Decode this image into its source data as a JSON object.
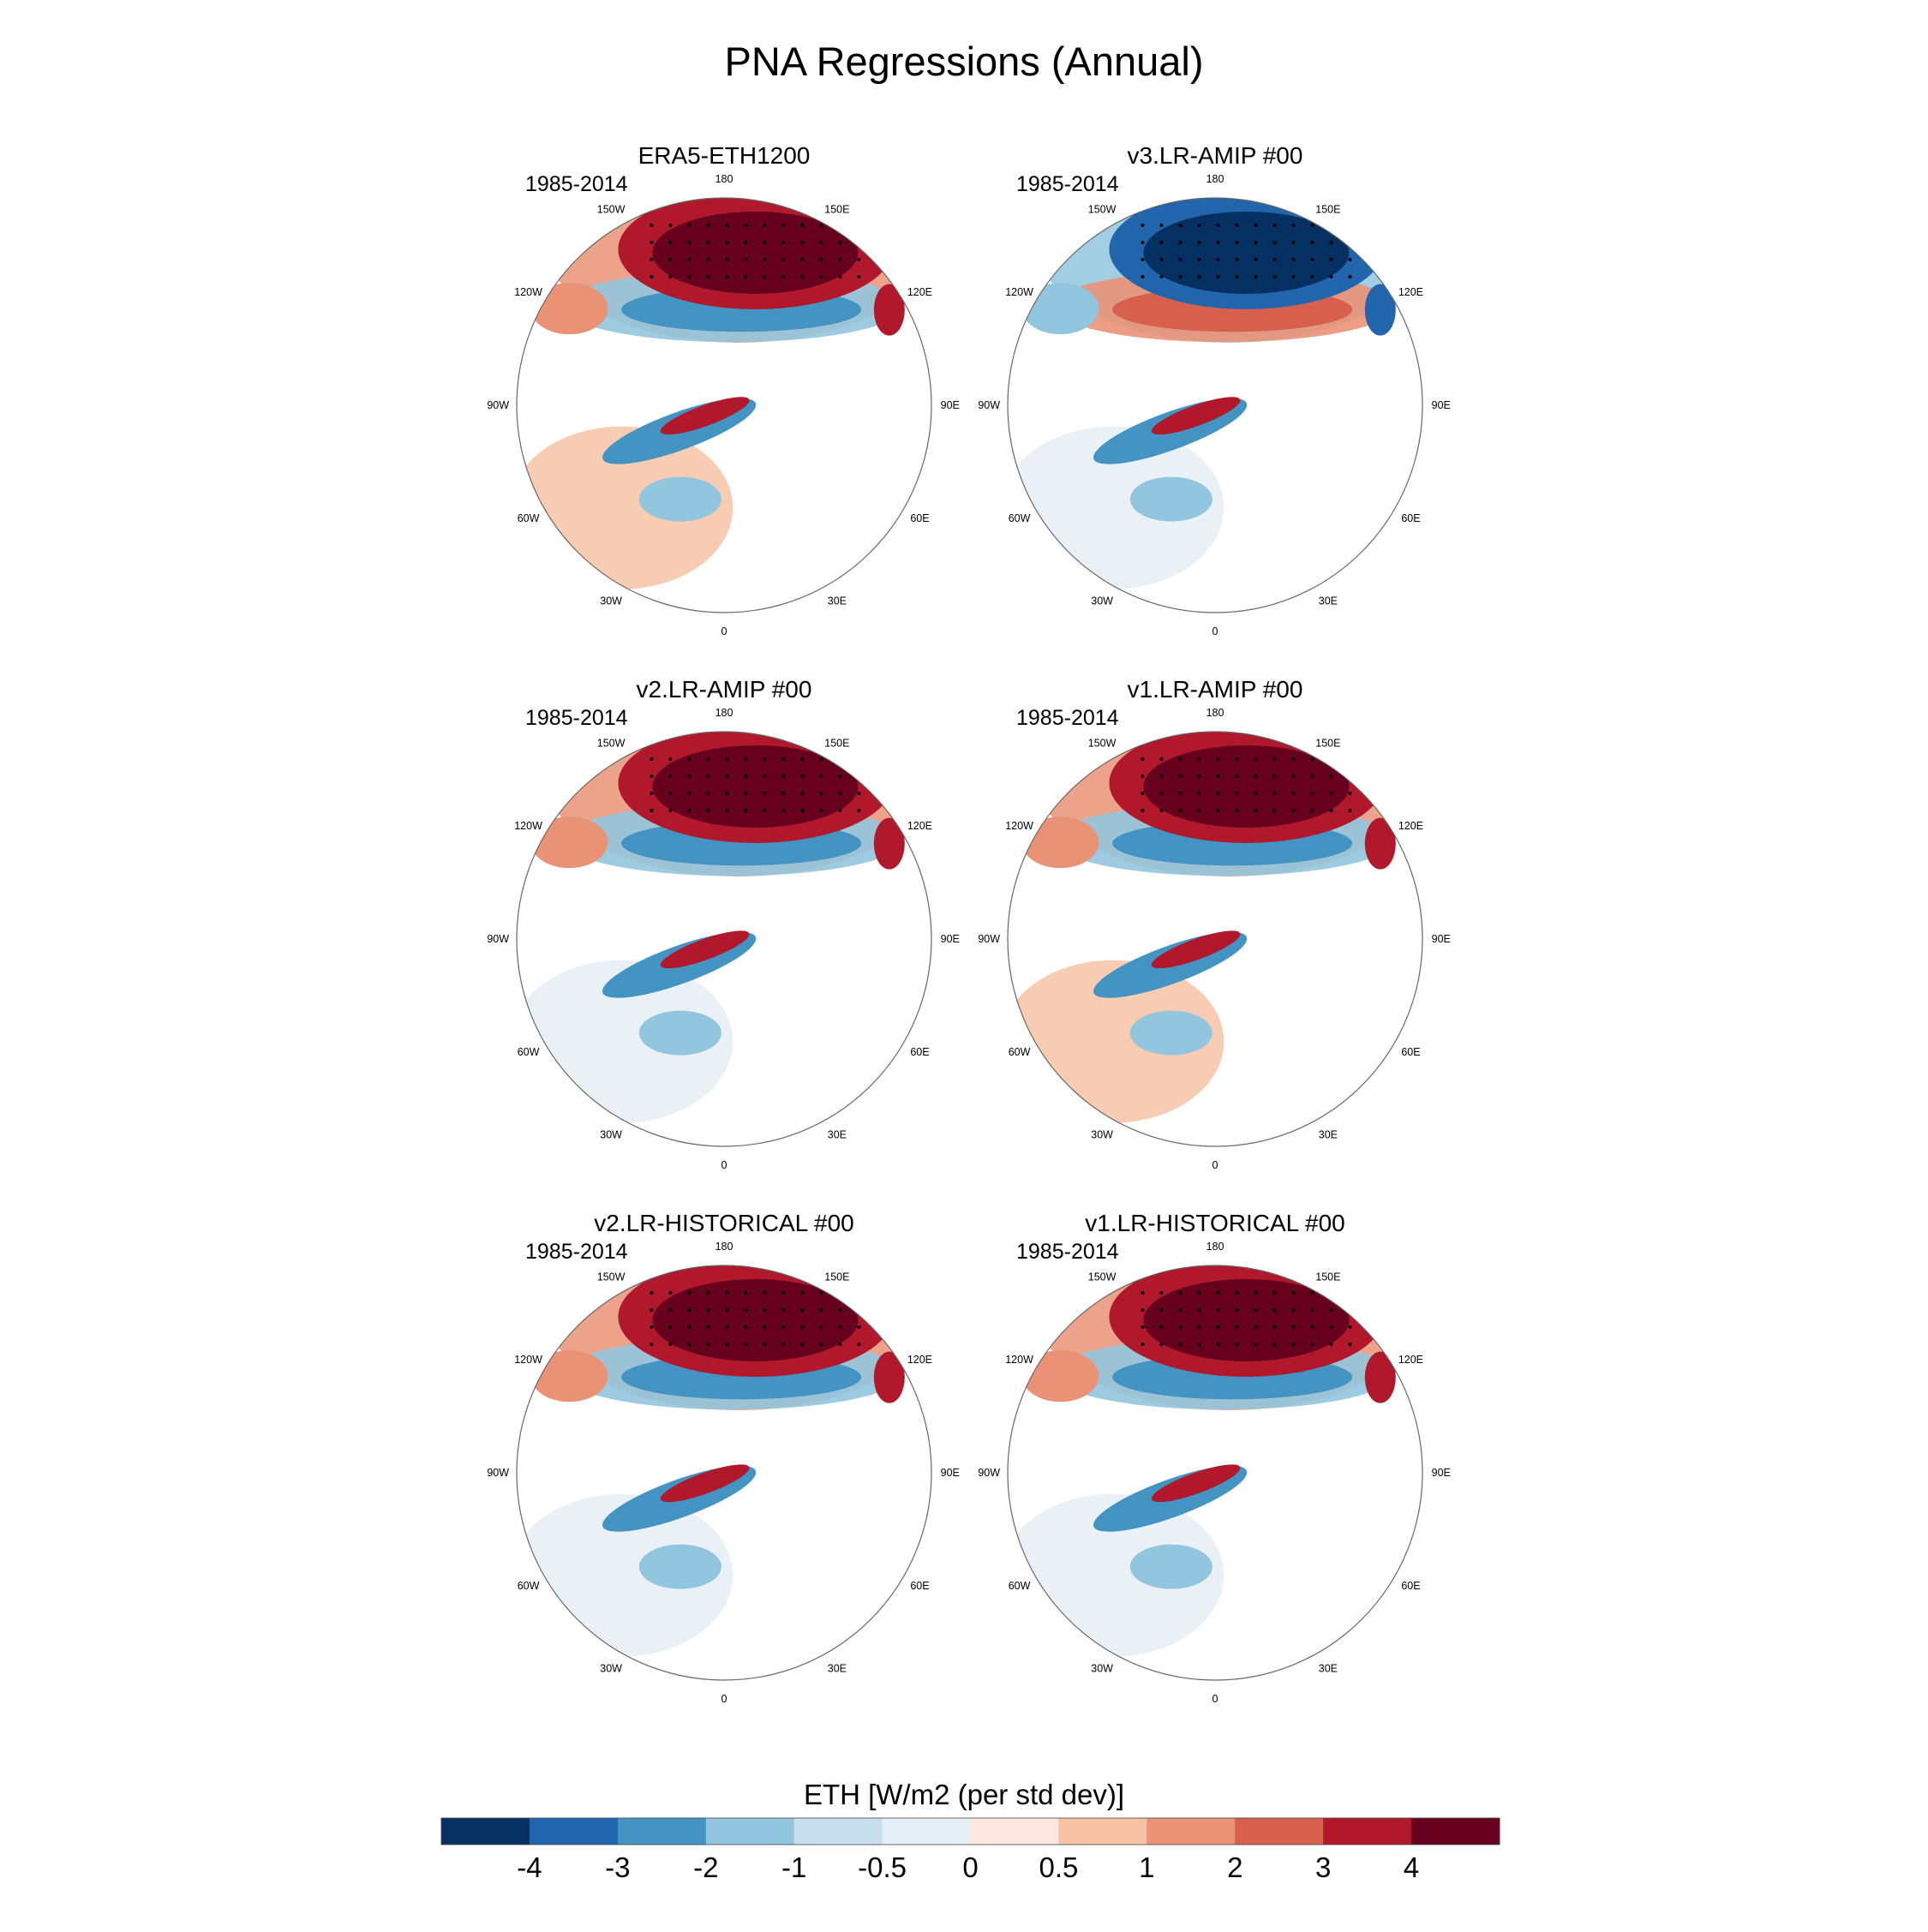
{
  "chart_data": {
    "type": "polar-map",
    "title": "PNA Regressions (Annual)",
    "projection": "North Polar Stereographic",
    "longitude_labels": [
      "180",
      "150E",
      "120E",
      "90E",
      "60E",
      "30E",
      "0",
      "30W",
      "60W",
      "90W",
      "120W",
      "150W"
    ],
    "panels": [
      {
        "title": "ERA5-ETH1200",
        "period": "1985-2014",
        "dominant": "positive",
        "pacific_sign": 1
      },
      {
        "title": "v3.LR-AMIP  #00",
        "period": "1985-2014",
        "dominant": "negative",
        "pacific_sign": -1
      },
      {
        "title": "v2.LR-AMIP  #00",
        "period": "1985-2014",
        "dominant": "positive",
        "pacific_sign": 1
      },
      {
        "title": "v1.LR-AMIP  #00",
        "period": "1985-2014",
        "dominant": "positive",
        "pacific_sign": 1
      },
      {
        "title": "v2.LR-HISTORICAL  #00",
        "period": "1985-2014",
        "dominant": "positive",
        "pacific_sign": 1
      },
      {
        "title": "v1.LR-HISTORICAL  #00",
        "period": "1985-2014",
        "dominant": "positive",
        "pacific_sign": 1
      }
    ],
    "colorbar": {
      "title": "ETH [W/m2 (per std dev)]",
      "levels": [
        "-4",
        "-3",
        "-2",
        "-1",
        "-0.5",
        "0",
        "0.5",
        "1",
        "2",
        "3",
        "4"
      ],
      "colors": [
        "#053061",
        "#2166ac",
        "#4393c3",
        "#92c5de",
        "#c7dfee",
        "#e6eef5",
        "#fbe7df",
        "#f7c2a6",
        "#ea9275",
        "#d6604d",
        "#b2182b",
        "#67001f"
      ]
    }
  }
}
